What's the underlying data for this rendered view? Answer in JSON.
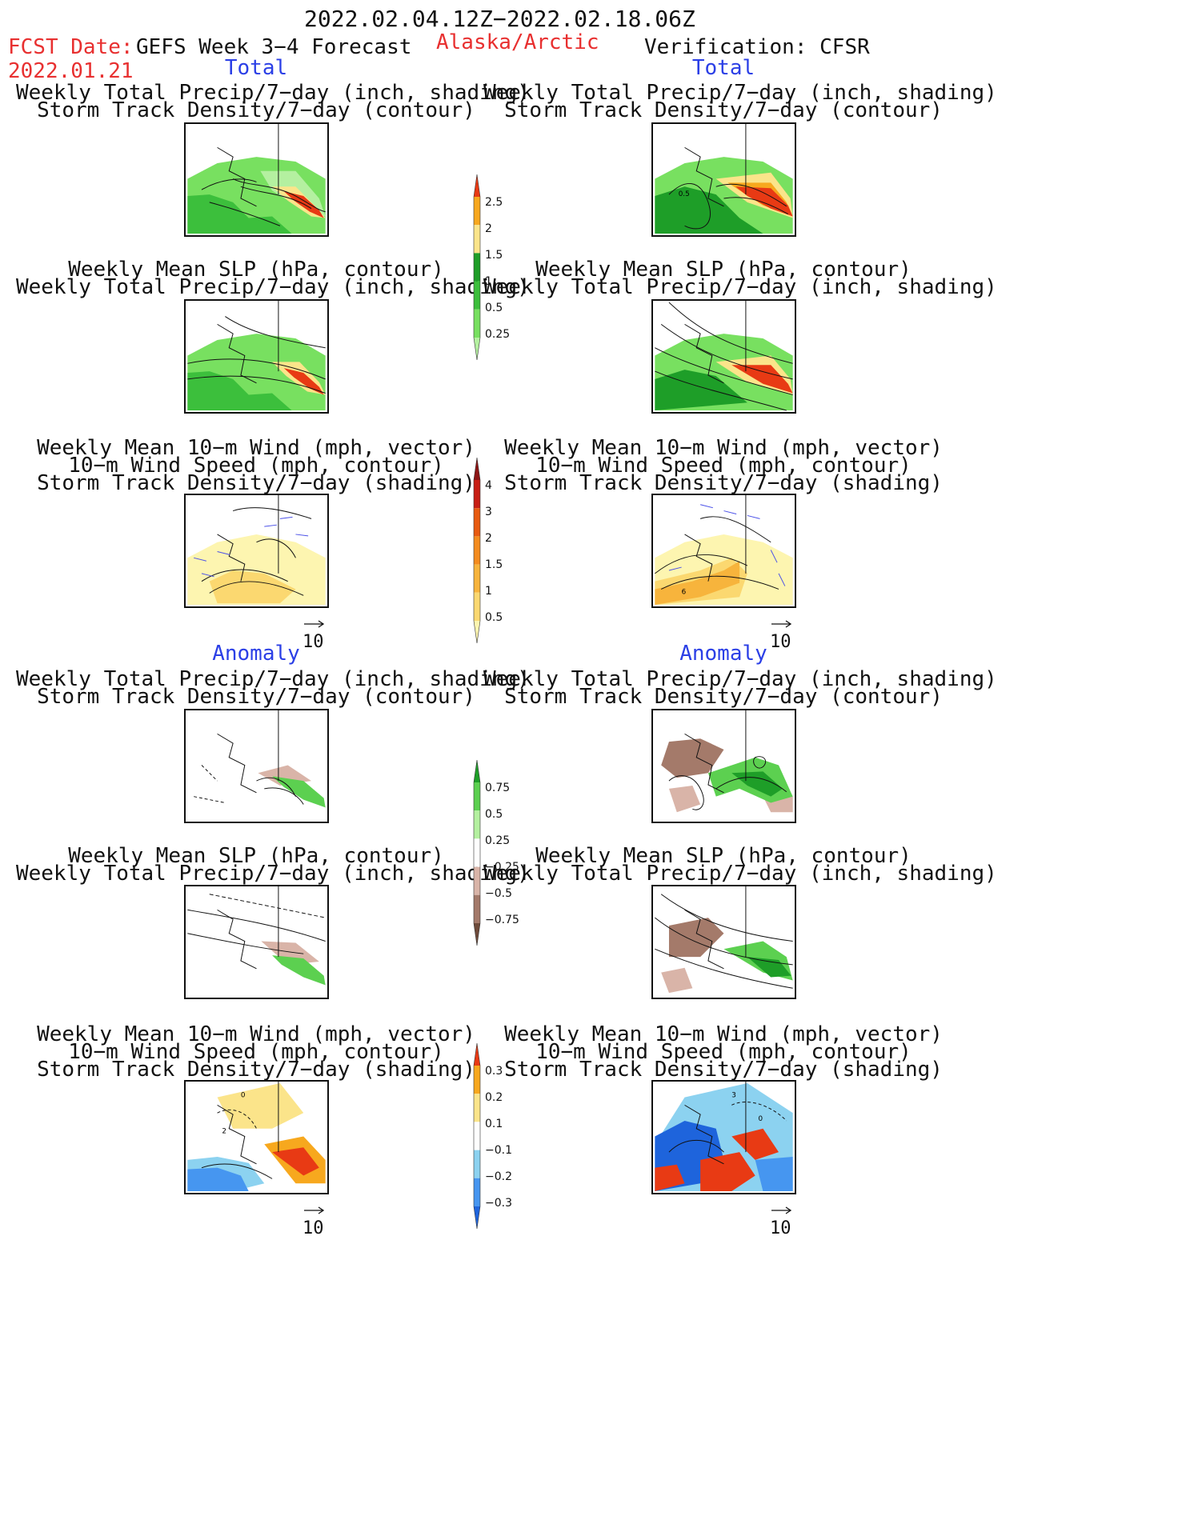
{
  "header": {
    "date_range": "2022.02.04.12Z−2022.02.18.06Z",
    "fcst_label": "FCST Date:",
    "fcst_date": "2022.01.21",
    "forecast_title": "GEFS Week 3−4 Forecast",
    "region": "Alaska/Arctic",
    "verification": "Verification: CFSR"
  },
  "colors": {
    "header_red": "#e83030",
    "section_blue": "#2b3fe6",
    "precip_scale": [
      "#b4f0a0",
      "#78e060",
      "#3cbf3c",
      "#1e9e28",
      "#fbe48a",
      "#f7a81e",
      "#e83a14"
    ],
    "storm_scale": [
      "#fdf5b0",
      "#fbd870",
      "#f7b43c",
      "#f48c1e",
      "#e85a10",
      "#c81e14",
      "#8c1414"
    ],
    "anom_precip_scale": [
      "#6e4a3a",
      "#a47a6a",
      "#d9b4a8",
      "#ffffff",
      "#b4f0a0",
      "#5cd050",
      "#1e9e28"
    ],
    "anom_storm_scale": [
      "#1e64dc",
      "#4696f0",
      "#8cd2f0",
      "#ffffff",
      "#fbe48a",
      "#f7a81e",
      "#e83a14"
    ]
  },
  "sections": {
    "total": "Total",
    "anomaly": "Anomaly"
  },
  "panels": {
    "precip_storm": [
      "Weekly Total Precip/7−day (inch, shading)",
      "Storm Track Density/7−day (contour)"
    ],
    "slp_precip": [
      "Weekly Mean SLP (hPa, contour)",
      "Weekly Total Precip/7−day (inch, shading)"
    ],
    "wind_storm": [
      "Weekly Mean 10−m Wind (mph, vector)",
      "10−m Wind Speed (mph, contour)",
      "Storm Track Density/7−day (shading)"
    ]
  },
  "vector_ref": "10",
  "colorbars": {
    "precip_total": [
      "2.5",
      "2",
      "1.5",
      "1",
      "0.5",
      "0.25"
    ],
    "storm_total": [
      "4",
      "3",
      "2",
      "1.5",
      "1",
      "0.5"
    ],
    "precip_anom": [
      "0.75",
      "0.5",
      "0.25",
      "−0.25",
      "−0.5",
      "−0.75"
    ],
    "storm_anom": [
      "0.3",
      "0.2",
      "0.1",
      "−0.1",
      "−0.2",
      "−0.3"
    ]
  },
  "map_labels": {
    "total_precip_obs": "0.5",
    "total_wind_obs": "6",
    "anom_wind_fcst_a": "0",
    "anom_wind_fcst_b": "2",
    "anom_wind_obs_a": "3",
    "anom_wind_obs_b": "0"
  }
}
